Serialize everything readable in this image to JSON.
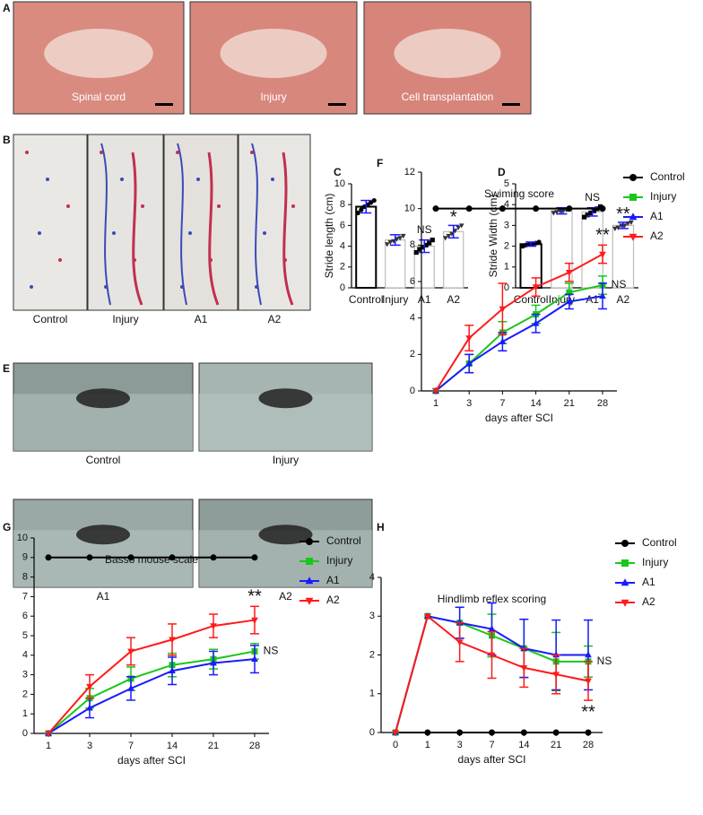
{
  "panels": {
    "A": {
      "label": "A",
      "captions": [
        "Spinal cord",
        "Injury",
        "Cell transplantation"
      ]
    },
    "B": {
      "label": "B",
      "captions": [
        "Control",
        "Injury",
        "A1",
        "A2"
      ]
    },
    "E": {
      "label": "E",
      "captions": [
        "Control",
        "Injury",
        "A1",
        "A2"
      ]
    }
  },
  "chart_data": [
    {
      "type": "bar",
      "panel_label": "C",
      "ylabel": "Stride length (cm)",
      "categories": [
        "Control",
        "Injury",
        "A1",
        "A2"
      ],
      "values": [
        7.8,
        4.6,
        4.0,
        5.4
      ],
      "errors": [
        0.6,
        0.5,
        0.6,
        0.6
      ],
      "points": [
        [
          7.2,
          7.5,
          7.8,
          8.0,
          8.2,
          8.4
        ],
        [
          4.2,
          4.4,
          4.5,
          4.7,
          4.8,
          5.0
        ],
        [
          3.4,
          3.7,
          3.9,
          4.1,
          4.3,
          4.6
        ],
        [
          4.8,
          5.0,
          5.2,
          5.5,
          5.8,
          6.0
        ]
      ],
      "bar_colors": [
        "#000000",
        "#bbbbbb",
        "#bbbbbb",
        "#bbbbbb"
      ],
      "point_colors": [
        "#000000",
        "#333333",
        "#000000",
        "#333333"
      ],
      "error_color": "#1a1aff",
      "ylim": [
        0,
        10
      ],
      "yticks": [
        0,
        2,
        4,
        6,
        8,
        10
      ],
      "annotations": [
        {
          "text": "NS",
          "at": "A1"
        },
        {
          "text": "*",
          "at": "A2"
        }
      ]
    },
    {
      "type": "bar",
      "panel_label": "D",
      "ylabel": "Stride Width (cm)",
      "categories": [
        "Control",
        "Injury",
        "A1",
        "A2"
      ],
      "values": [
        2.1,
        3.7,
        3.65,
        3.0
      ],
      "errors": [
        0.1,
        0.15,
        0.2,
        0.15
      ],
      "points": [
        [
          2.0,
          2.05,
          2.1,
          2.1,
          2.15,
          2.2
        ],
        [
          3.6,
          3.65,
          3.7,
          3.7,
          3.75,
          3.8
        ],
        [
          3.4,
          3.5,
          3.6,
          3.7,
          3.8,
          3.9
        ],
        [
          2.85,
          2.9,
          3.0,
          3.0,
          3.1,
          3.15
        ]
      ],
      "bar_colors": [
        "#000000",
        "#bbbbbb",
        "#bbbbbb",
        "#bbbbbb"
      ],
      "point_colors": [
        "#000000",
        "#333333",
        "#000000",
        "#333333"
      ],
      "error_color": "#1a1aff",
      "ylim": [
        0,
        5
      ],
      "yticks": [
        0,
        1,
        2,
        3,
        4,
        5
      ],
      "annotations": [
        {
          "text": "NS",
          "at": "A1"
        },
        {
          "text": "**",
          "at": "A2"
        }
      ]
    },
    {
      "type": "line",
      "panel_label": "F",
      "title": "Swiming score",
      "xlabel": "days after SCI",
      "categories": [
        "1",
        "3",
        "7",
        "14",
        "21",
        "28"
      ],
      "ylim": [
        0,
        12
      ],
      "yticks": [
        0,
        2,
        4,
        6,
        8,
        10,
        12
      ],
      "legend": "right",
      "series": [
        {
          "name": "Control",
          "color": "#000000",
          "marker": "circle",
          "values": [
            10,
            10,
            10,
            10,
            10,
            10
          ],
          "errors": [
            0,
            0,
            0,
            0,
            0,
            0
          ]
        },
        {
          "name": "Injury",
          "color": "#19c719",
          "marker": "square",
          "values": [
            0,
            1.5,
            3.2,
            4.2,
            5.4,
            5.8
          ],
          "errors": [
            0,
            0.5,
            0.6,
            0.5,
            0.5,
            0.5
          ]
        },
        {
          "name": "A1",
          "color": "#1a1aff",
          "marker": "triangle-up",
          "values": [
            0,
            1.5,
            2.7,
            3.7,
            4.9,
            5.2
          ],
          "errors": [
            0,
            0.5,
            0.5,
            0.5,
            0.4,
            0.7
          ]
        },
        {
          "name": "A2",
          "color": "#ff1a1a",
          "marker": "triangle-down",
          "values": [
            0,
            2.9,
            4.5,
            5.7,
            6.5,
            7.5
          ],
          "errors": [
            0,
            0.7,
            1.4,
            0.5,
            0.5,
            0.5
          ]
        }
      ],
      "annotations": [
        {
          "text": "NS",
          "series": "Injury"
        },
        {
          "text": "**",
          "series": "A2"
        }
      ]
    },
    {
      "type": "line",
      "panel_label": "G",
      "title": "Basso mouse scale",
      "xlabel": "days after SCI",
      "categories": [
        "1",
        "3",
        "7",
        "14",
        "21",
        "28"
      ],
      "ylim": [
        0,
        10
      ],
      "yticks": [
        0,
        1,
        2,
        3,
        4,
        5,
        6,
        7,
        8,
        9,
        10
      ],
      "legend": "right",
      "series": [
        {
          "name": "Control",
          "color": "#000000",
          "marker": "circle",
          "values": [
            9,
            9,
            9,
            9,
            9,
            9
          ],
          "errors": [
            0,
            0,
            0,
            0,
            0,
            0
          ]
        },
        {
          "name": "Injury",
          "color": "#19c719",
          "marker": "square",
          "values": [
            0,
            1.8,
            2.8,
            3.5,
            3.8,
            4.2
          ],
          "errors": [
            0,
            0.5,
            0.6,
            0.6,
            0.5,
            0.4
          ]
        },
        {
          "name": "A1",
          "color": "#1a1aff",
          "marker": "triangle-up",
          "values": [
            0,
            1.3,
            2.3,
            3.2,
            3.6,
            3.8
          ],
          "errors": [
            0,
            0.5,
            0.6,
            0.7,
            0.6,
            0.7
          ]
        },
        {
          "name": "A2",
          "color": "#ff1a1a",
          "marker": "triangle-down",
          "values": [
            0,
            2.4,
            4.2,
            4.8,
            5.5,
            5.8
          ],
          "errors": [
            0,
            0.6,
            0.7,
            0.8,
            0.6,
            0.7
          ]
        }
      ],
      "annotations": [
        {
          "text": "NS",
          "series": "Injury"
        },
        {
          "text": "**",
          "series": "A2"
        }
      ]
    },
    {
      "type": "line",
      "panel_label": "H",
      "title": "Hindlimb reflex scoring",
      "xlabel": "days after SCI",
      "categories": [
        "0",
        "1",
        "3",
        "7",
        "14",
        "21",
        "28"
      ],
      "ylim": [
        0,
        4
      ],
      "yticks": [
        0,
        1,
        2,
        3,
        4
      ],
      "legend": "right",
      "series": [
        {
          "name": "Control",
          "color": "#000000",
          "marker": "circle",
          "values": [
            0,
            0,
            0,
            0,
            0,
            0,
            0
          ],
          "errors": [
            0,
            0,
            0,
            0,
            0,
            0,
            0
          ]
        },
        {
          "name": "Injury",
          "color": "#19c719",
          "marker": "square",
          "values": [
            0,
            3,
            2.83,
            2.5,
            2.17,
            1.83,
            1.83
          ],
          "errors": [
            0,
            0,
            0.4,
            0.55,
            0.75,
            0.75,
            0.4
          ]
        },
        {
          "name": "A1",
          "color": "#1a1aff",
          "marker": "triangle-up",
          "values": [
            0,
            3,
            2.83,
            2.67,
            2.17,
            2.0,
            2.0
          ],
          "errors": [
            0,
            0,
            0.4,
            0.67,
            0.75,
            0.9,
            0.9
          ]
        },
        {
          "name": "A2",
          "color": "#ff1a1a",
          "marker": "triangle-down",
          "values": [
            0,
            3,
            2.33,
            2.0,
            1.67,
            1.5,
            1.33
          ],
          "errors": [
            0,
            0,
            0.5,
            0.6,
            0.5,
            0.5,
            0.5
          ]
        }
      ],
      "annotations": [
        {
          "text": "NS",
          "series": "Injury"
        },
        {
          "text": "**",
          "series": "A2"
        }
      ]
    }
  ]
}
